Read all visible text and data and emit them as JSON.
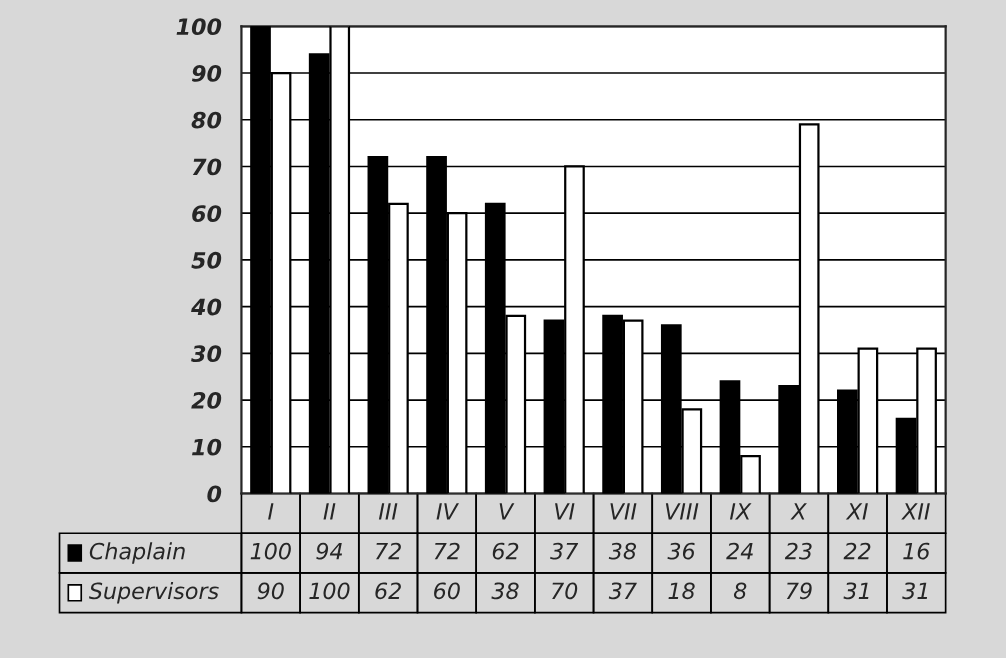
{
  "chart_data": {
    "type": "bar",
    "categories": [
      "I",
      "II",
      "III",
      "IV",
      "V",
      "VI",
      "VII",
      "VIII",
      "IX",
      "X",
      "XI",
      "XII"
    ],
    "series": [
      {
        "name": "Chaplain",
        "color": "#000000",
        "values": [
          100,
          94,
          72,
          72,
          62,
          37,
          38,
          36,
          24,
          23,
          22,
          16
        ]
      },
      {
        "name": "Supervisors",
        "color": "#ffffff",
        "values": [
          90,
          100,
          62,
          60,
          38,
          70,
          37,
          18,
          8,
          79,
          31,
          31
        ]
      }
    ],
    "ylim": [
      0,
      100
    ],
    "yticks": [
      0,
      10,
      20,
      30,
      40,
      50,
      60,
      70,
      80,
      90,
      100
    ],
    "grid": "y",
    "legend": "bottom",
    "data_labels": true
  }
}
